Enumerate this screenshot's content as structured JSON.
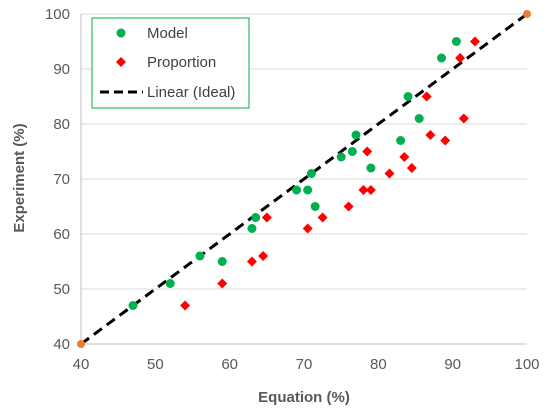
{
  "chart_data": {
    "type": "scatter",
    "xlabel": "Equation (%)",
    "ylabel": "Experiment (%)",
    "xlim": [
      40,
      100
    ],
    "ylim": [
      40,
      100
    ],
    "xticks": [
      "40",
      "50",
      "60",
      "70",
      "80",
      "90",
      "100"
    ],
    "yticks": [
      "40",
      "50",
      "60",
      "70",
      "80",
      "90",
      "100"
    ],
    "grid": "horizontal",
    "legend_position": "top-left",
    "series": [
      {
        "name": "Model",
        "marker": "circle",
        "color": "#00b050",
        "points": [
          [
            47,
            47
          ],
          [
            52,
            51
          ],
          [
            56,
            56
          ],
          [
            59,
            55
          ],
          [
            63,
            61
          ],
          [
            63.5,
            63
          ],
          [
            69,
            68
          ],
          [
            70.5,
            68
          ],
          [
            71,
            71
          ],
          [
            71.5,
            65
          ],
          [
            75,
            74
          ],
          [
            76.5,
            75
          ],
          [
            77,
            78
          ],
          [
            79,
            72
          ],
          [
            83,
            77
          ],
          [
            84,
            85
          ],
          [
            85.5,
            81
          ],
          [
            88.5,
            92
          ],
          [
            90.5,
            95
          ]
        ]
      },
      {
        "name": "Proportion",
        "marker": "diamond",
        "color": "#ff0000",
        "points": [
          [
            54,
            47
          ],
          [
            59,
            51
          ],
          [
            63,
            55
          ],
          [
            64.5,
            56
          ],
          [
            65,
            63
          ],
          [
            70.5,
            61
          ],
          [
            72.5,
            63
          ],
          [
            76,
            65
          ],
          [
            78,
            68
          ],
          [
            78.5,
            75
          ],
          [
            79,
            68
          ],
          [
            81.5,
            71
          ],
          [
            83.5,
            74
          ],
          [
            84.5,
            72
          ],
          [
            86.5,
            85
          ],
          [
            87,
            78
          ],
          [
            89,
            77
          ],
          [
            91,
            92
          ],
          [
            91.5,
            81
          ],
          [
            93,
            95
          ]
        ]
      },
      {
        "name": "Linear (Ideal)",
        "style": "dashed-line",
        "color": "#000000",
        "endpoint_color": "#ed7d31",
        "points": [
          [
            40,
            40
          ],
          [
            100,
            100
          ]
        ]
      }
    ]
  }
}
